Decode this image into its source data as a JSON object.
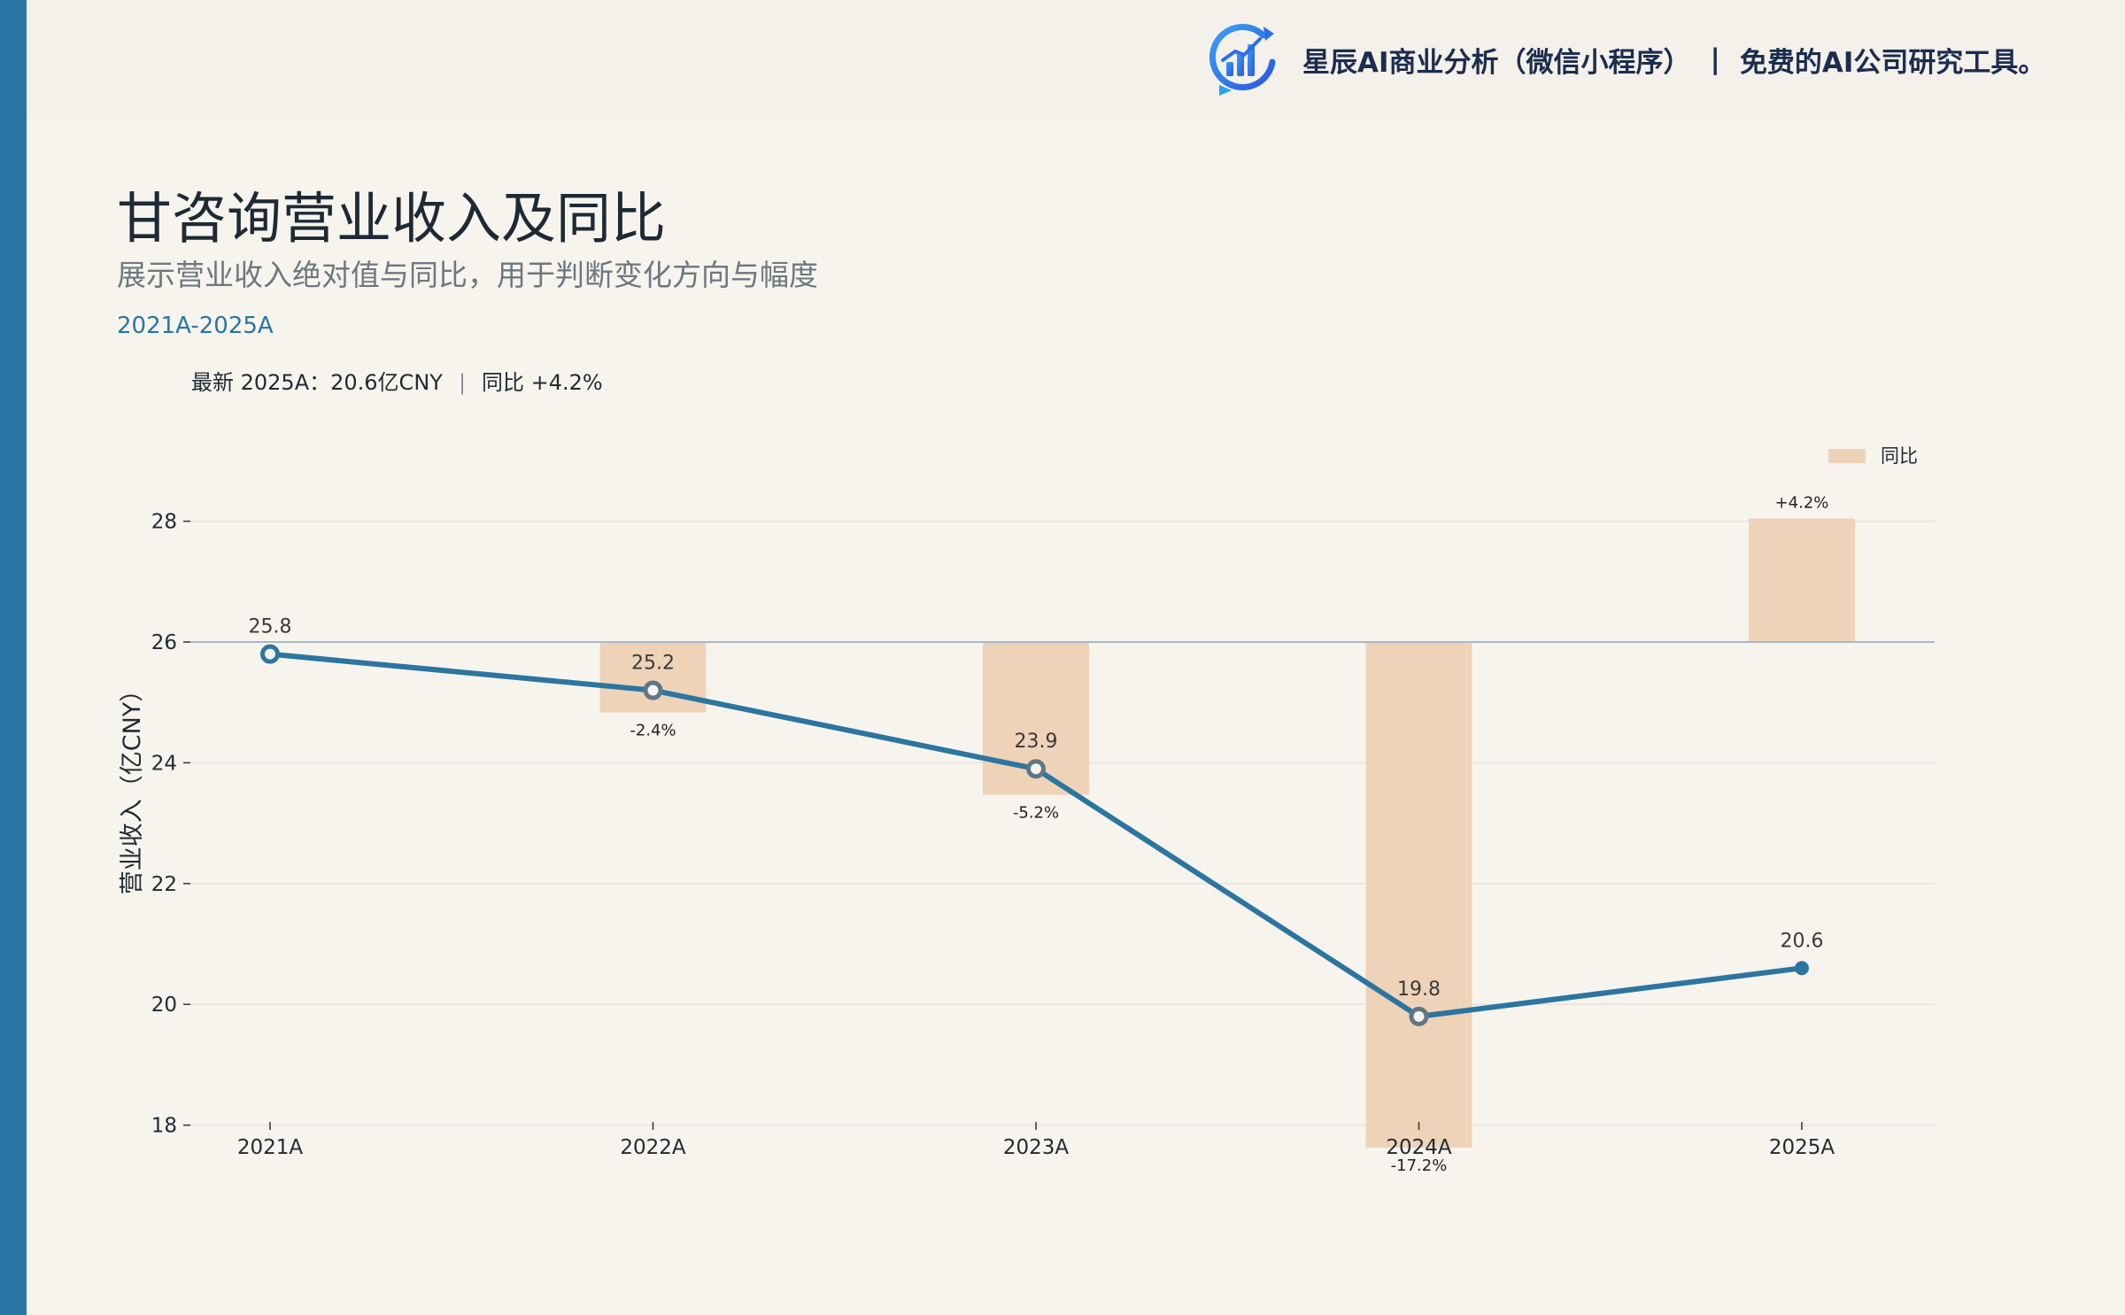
{
  "header": {
    "brand_name": "星辰AI商业分析（微信小程序）",
    "brand_separator": "|",
    "brand_tagline": "免费的AI公司研究工具。",
    "logo_icon": "bar-chart-growth-icon"
  },
  "title": "甘咨询营业收入及同比",
  "subtitle": "展示营业收入绝对值与同比，用于判断变化方向与幅度",
  "period": "2021A-2025A",
  "summary": {
    "latest": "最新 2025A：20.6亿CNY",
    "separator": "|",
    "yoy": "同比 +4.2%"
  },
  "colors": {
    "accent": "#2876a4",
    "line": "#2c75a0",
    "bar": "#efd3b8",
    "background": "#f7f4ee",
    "header_bg": "#f4f0ea"
  },
  "chart_data": {
    "type": "line",
    "categories": [
      "2021A",
      "2022A",
      "2023A",
      "2024A",
      "2025A"
    ],
    "series": [
      {
        "name": "",
        "values": [
          25.8,
          25.2,
          23.9,
          19.8,
          20.6
        ],
        "value_labels": [
          "25.8",
          "25.2",
          "23.9",
          "19.8",
          "20.6"
        ]
      },
      {
        "name": "同比",
        "type": "bar",
        "values": [
          null,
          -2.4,
          -5.2,
          -17.2,
          4.2
        ],
        "value_labels": [
          "",
          "-2.4%",
          "-5.2%",
          "-17.2%",
          "+4.2%"
        ]
      }
    ],
    "ylabel": "营业收入（亿CNY）",
    "ylim": [
      17.2,
      29.1
    ],
    "yticks": [
      18,
      20,
      22,
      24,
      26,
      28
    ],
    "bar_baseline": 26,
    "legend": {
      "position": "top-right",
      "label": "同比"
    },
    "grid": true
  }
}
